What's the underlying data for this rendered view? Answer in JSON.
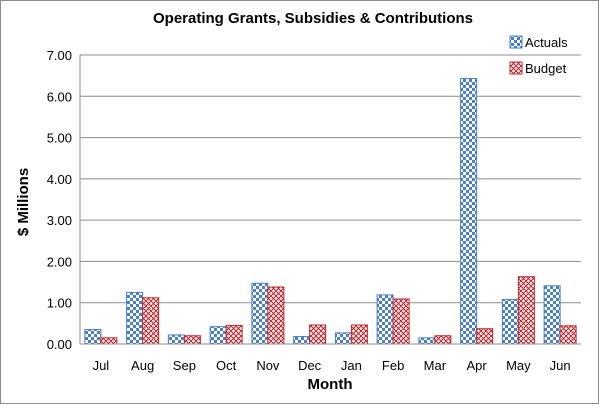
{
  "chart_data": {
    "type": "bar",
    "title": "Operating Grants, Subsidies & Contributions",
    "xlabel": "Month",
    "ylabel": "$ Millions",
    "categories": [
      "Jul",
      "Aug",
      "Sep",
      "Oct",
      "Nov",
      "Dec",
      "Jan",
      "Feb",
      "Mar",
      "Apr",
      "May",
      "Jun"
    ],
    "ylim": [
      0,
      7
    ],
    "yticks": [
      "0.00",
      "1.00",
      "2.00",
      "3.00",
      "4.00",
      "5.00",
      "6.00",
      "7.00"
    ],
    "grid": true,
    "legend_position": "top-right",
    "series": [
      {
        "name": "Actuals",
        "color": "#4a7ec7",
        "pattern": "checkerboard",
        "values": [
          0.35,
          1.25,
          0.22,
          0.42,
          1.47,
          0.18,
          0.27,
          1.19,
          0.15,
          6.43,
          1.08,
          1.41
        ]
      },
      {
        "name": "Budget",
        "color": "#c0262d",
        "pattern": "crosshatch",
        "values": [
          0.15,
          1.12,
          0.2,
          0.45,
          1.38,
          0.46,
          0.46,
          1.09,
          0.2,
          0.37,
          1.63,
          0.44
        ]
      }
    ]
  }
}
